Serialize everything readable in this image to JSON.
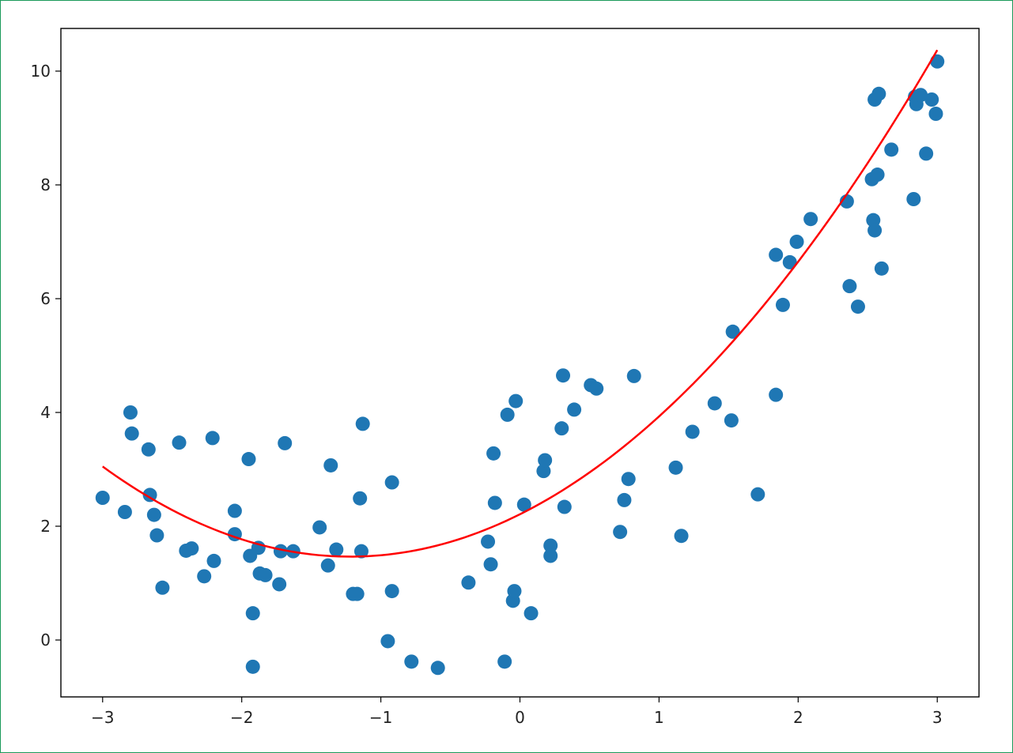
{
  "chart_data": {
    "type": "scatter",
    "xlim": [
      -3.3,
      3.3
    ],
    "ylim": [
      -1.0,
      10.75
    ],
    "grid": false,
    "x_ticks": [
      -3,
      -2,
      -1,
      0,
      1,
      2,
      3
    ],
    "x_tick_labels": [
      "−3",
      "−2",
      "−1",
      "0",
      "1",
      "2",
      "3"
    ],
    "y_ticks": [
      0,
      2,
      4,
      6,
      8,
      10
    ],
    "y_tick_labels": [
      "0",
      "2",
      "4",
      "6",
      "8",
      "10"
    ],
    "colors": {
      "points": "#1f77b4",
      "curve": "#ff0000",
      "frame": "#1a9a5a"
    },
    "series": [
      {
        "type": "scatter",
        "points": [
          [
            -3.0,
            2.5
          ],
          [
            -2.84,
            2.25
          ],
          [
            -2.8,
            4.0
          ],
          [
            -2.79,
            3.63
          ],
          [
            -2.67,
            3.35
          ],
          [
            -2.66,
            2.55
          ],
          [
            -2.63,
            2.2
          ],
          [
            -2.61,
            1.84
          ],
          [
            -2.57,
            0.92
          ],
          [
            -2.45,
            3.47
          ],
          [
            -2.4,
            1.57
          ],
          [
            -2.36,
            1.61
          ],
          [
            -2.27,
            1.12
          ],
          [
            -2.2,
            1.39
          ],
          [
            -2.21,
            3.55
          ],
          [
            -2.05,
            1.86
          ],
          [
            -2.05,
            2.27
          ],
          [
            -1.95,
            3.18
          ],
          [
            -1.94,
            1.48
          ],
          [
            -1.92,
            0.47
          ],
          [
            -1.92,
            -0.47
          ],
          [
            -1.88,
            1.62
          ],
          [
            -1.87,
            1.17
          ],
          [
            -1.83,
            1.14
          ],
          [
            -1.73,
            0.98
          ],
          [
            -1.72,
            1.56
          ],
          [
            -1.69,
            3.46
          ],
          [
            -1.63,
            1.56
          ],
          [
            -1.44,
            1.98
          ],
          [
            -1.38,
            1.31
          ],
          [
            -1.36,
            3.07
          ],
          [
            -1.32,
            1.59
          ],
          [
            -1.2,
            0.81
          ],
          [
            -1.17,
            0.81
          ],
          [
            -1.15,
            2.49
          ],
          [
            -1.14,
            1.56
          ],
          [
            -1.13,
            3.8
          ],
          [
            -0.95,
            -0.02
          ],
          [
            -0.92,
            0.86
          ],
          [
            -0.92,
            2.77
          ],
          [
            -0.78,
            -0.38
          ],
          [
            -0.59,
            -0.49
          ],
          [
            -0.37,
            1.01
          ],
          [
            -0.23,
            1.73
          ],
          [
            -0.21,
            1.33
          ],
          [
            -0.19,
            3.28
          ],
          [
            -0.18,
            2.41
          ],
          [
            -0.11,
            -0.38
          ],
          [
            -0.09,
            3.96
          ],
          [
            -0.05,
            0.69
          ],
          [
            -0.04,
            0.86
          ],
          [
            -0.03,
            4.2
          ],
          [
            0.03,
            2.38
          ],
          [
            0.08,
            0.47
          ],
          [
            0.17,
            2.97
          ],
          [
            0.18,
            3.16
          ],
          [
            0.22,
            1.66
          ],
          [
            0.22,
            1.48
          ],
          [
            0.3,
            3.72
          ],
          [
            0.31,
            4.65
          ],
          [
            0.32,
            2.34
          ],
          [
            0.39,
            4.05
          ],
          [
            0.51,
            4.48
          ],
          [
            0.55,
            4.42
          ],
          [
            0.72,
            1.9
          ],
          [
            0.75,
            2.46
          ],
          [
            0.78,
            2.83
          ],
          [
            0.82,
            4.64
          ],
          [
            1.12,
            3.03
          ],
          [
            1.16,
            1.83
          ],
          [
            1.24,
            3.66
          ],
          [
            1.4,
            4.16
          ],
          [
            1.52,
            3.86
          ],
          [
            1.53,
            5.42
          ],
          [
            1.71,
            2.56
          ],
          [
            1.84,
            4.31
          ],
          [
            1.84,
            6.77
          ],
          [
            1.89,
            5.89
          ],
          [
            1.94,
            6.64
          ],
          [
            1.99,
            7.0
          ],
          [
            2.09,
            7.4
          ],
          [
            2.35,
            7.71
          ],
          [
            2.37,
            6.22
          ],
          [
            2.43,
            5.86
          ],
          [
            2.53,
            8.1
          ],
          [
            2.54,
            7.38
          ],
          [
            2.55,
            7.2
          ],
          [
            2.55,
            9.5
          ],
          [
            2.57,
            8.18
          ],
          [
            2.58,
            9.6
          ],
          [
            2.6,
            6.53
          ],
          [
            2.67,
            8.62
          ],
          [
            2.83,
            7.75
          ],
          [
            2.84,
            9.55
          ],
          [
            2.85,
            9.42
          ],
          [
            2.88,
            9.58
          ],
          [
            2.92,
            8.55
          ],
          [
            2.96,
            9.5
          ],
          [
            2.99,
            9.25
          ],
          [
            3.0,
            10.17
          ]
        ]
      },
      {
        "type": "line",
        "x_range": [
          -3.0,
          3.0
        ],
        "fit": {
          "form": "quadratic",
          "a": 0.5,
          "b": 1.22,
          "c": 2.21
        }
      }
    ]
  }
}
